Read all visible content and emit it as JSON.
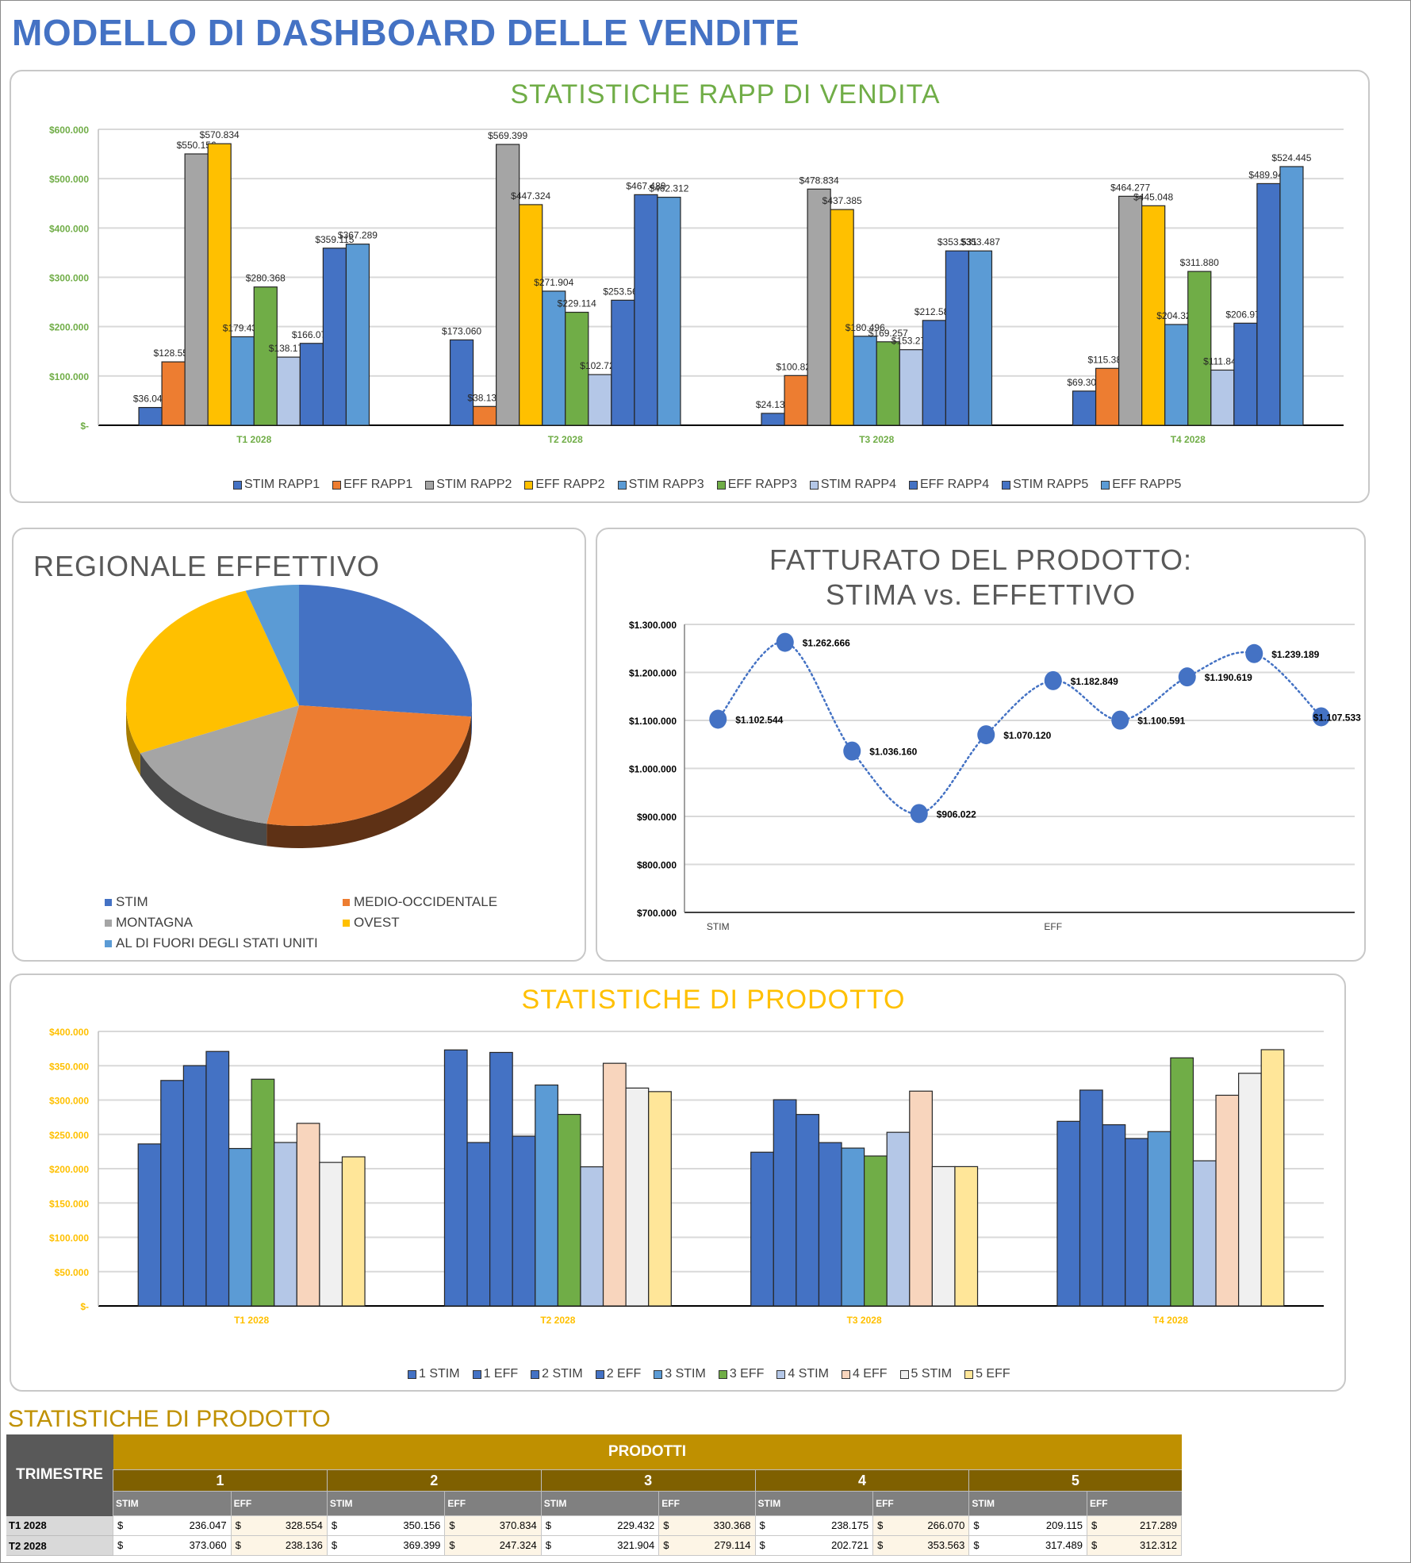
{
  "page": {
    "title": "MODELLO DI DASHBOARD DELLE VENDITE"
  },
  "colors": {
    "title_blue": "#4472c4",
    "green_title": "#70ad47",
    "gold_title": "#ffc000",
    "table_gold": "#bf9000",
    "table_dark_gold": "#7f6000"
  },
  "chart_data": [
    {
      "id": "rep-stats",
      "type": "bar",
      "title": "STATISTICHE RAPP DI VENDITA",
      "categories": [
        "T1 2028",
        "T2 2028",
        "T3 2028",
        "T4 2028"
      ],
      "ylim": [
        0,
        600000
      ],
      "yticks": [
        0,
        100000,
        200000,
        300000,
        400000,
        500000,
        600000
      ],
      "ytick_labels": [
        "$-",
        "$100.000",
        "$200.000",
        "$300.000",
        "$400.000",
        "$500.000",
        "$600.000"
      ],
      "grid": true,
      "legend": "bottom",
      "data_labels": true,
      "series": [
        {
          "name": "STIM RAPP1",
          "color": "#4472c4",
          "values": [
            36047,
            173060,
            24132,
            69305
          ],
          "labels": [
            "$36.047",
            "$173.060",
            "$24.132",
            "$69.305"
          ]
        },
        {
          "name": "EFF RAPP1",
          "color": "#ed7d31",
          "values": [
            128554,
            38136,
            100822,
            115387
          ],
          "labels": [
            "$128.554",
            "$38.136",
            "$100.822",
            "$115.387"
          ]
        },
        {
          "name": "STIM RAPP2",
          "color": "#a5a5a5",
          "values": [
            550156,
            569399,
            478834,
            464277
          ],
          "labels": [
            "$550.156",
            "$569.399",
            "$478.834",
            "$464.277"
          ]
        },
        {
          "name": "EFF RAPP2",
          "color": "#ffc000",
          "values": [
            570834,
            447324,
            437385,
            445048
          ],
          "labels": [
            "$570.834",
            "$447.324",
            "$437.385",
            "$445.048"
          ]
        },
        {
          "name": "STIM RAPP3",
          "color": "#5b9bd5",
          "values": [
            179432,
            271904,
            180496,
            204328
          ],
          "labels": [
            "$179.432",
            "$271.904",
            "$180.496",
            "$204.328"
          ]
        },
        {
          "name": "EFF RAPP3",
          "color": "#70ad47",
          "values": [
            280368,
            229114,
            169257,
            311880
          ],
          "labels": [
            "$280.368",
            "$229.114",
            "$169.257",
            "$311.880"
          ]
        },
        {
          "name": "STIM RAPP4",
          "color": "#b4c7e7",
          "values": [
            138175,
            102721,
            153279,
            111847
          ],
          "labels": [
            "$138.175",
            "$102.721",
            "$153.279",
            "$111.847"
          ]
        },
        {
          "name": "EFF RAPP4",
          "color": "#4472c4",
          "values": [
            166070,
            253563,
            212586,
            206970
          ],
          "labels": [
            "$166.070",
            "$253.563",
            "$212.586",
            "$206.970"
          ]
        },
        {
          "name": "STIM RAPP5",
          "color": "#4472c4",
          "values": [
            359115,
            467489,
            353531,
            489945
          ],
          "labels": [
            "$359.115",
            "$467.489",
            "$353.531",
            "$489.945"
          ]
        },
        {
          "name": "EFF RAPP5",
          "color": "#5b9bd5",
          "values": [
            367289,
            462312,
            353487,
            524445
          ],
          "labels": [
            "$367.289",
            "$462.312",
            "$353.487",
            "$524.445"
          ]
        }
      ]
    },
    {
      "id": "regional-pie",
      "type": "pie",
      "title": "REGIONALE EFFETTIVO",
      "legend": "bottom",
      "slices": [
        {
          "name": "STIM",
          "color": "#4472c4",
          "share": 0.265
        },
        {
          "name": "MEDIO-OCCIDENTALE",
          "color": "#ed7d31",
          "share": 0.265
        },
        {
          "name": "MONTAGNA",
          "color": "#a5a5a5",
          "share": 0.155
        },
        {
          "name": "OVEST",
          "color": "#ffc000",
          "share": 0.265
        },
        {
          "name": "AL DI FUORI DEGLI STATI UNITI",
          "color": "#5b9bd5",
          "share": 0.05
        }
      ],
      "legend_order": [
        "STIM",
        "MEDIO-OCCIDENTALE",
        "MONTAGNA",
        "OVEST",
        "AL DI FUORI DEGLI STATI UNITI"
      ]
    },
    {
      "id": "revenue-line",
      "type": "line",
      "title_line1": "FATTURATO DEL PRODOTTO:",
      "title_line2": "STIMA vs. EFFETTIVO",
      "ylim": [
        700000,
        1300000
      ],
      "yticks": [
        700000,
        800000,
        900000,
        1000000,
        1100000,
        1200000,
        1300000
      ],
      "ytick_labels": [
        "$700.000",
        "$800.000",
        "$900.000",
        "$1.000.000",
        "$1.100.000",
        "$1.200.000",
        "$1.300.000"
      ],
      "xtick_labels": [
        {
          "label": "STIM",
          "index": 0
        },
        {
          "label": "EFF",
          "index": 5
        }
      ],
      "grid": true,
      "series": [
        {
          "name": "Fatturato",
          "color": "#4472c4",
          "style": "dotted-smooth",
          "values": [
            1102544,
            1262666,
            1036160,
            906022,
            1070120,
            1182849,
            1100591,
            1190619,
            1239189,
            1107533
          ],
          "labels": [
            "$1.102.544",
            "$1.262.666",
            "$1.036.160",
            "$906.022",
            "$1.070.120",
            "$1.182.849",
            "$1.100.591",
            "$1.190.619",
            "$1.239.189",
            "$1.107.533"
          ]
        }
      ]
    },
    {
      "id": "product-stats",
      "type": "bar",
      "title": "STATISTICHE DI PRODOTTO",
      "categories": [
        "T1 2028",
        "T2 2028",
        "T3 2028",
        "T4 2028"
      ],
      "ylim": [
        0,
        400000
      ],
      "yticks": [
        0,
        50000,
        100000,
        150000,
        200000,
        250000,
        300000,
        350000,
        400000
      ],
      "ytick_labels": [
        "$-",
        "$50.000",
        "$100.000",
        "$150.000",
        "$200.000",
        "$250.000",
        "$300.000",
        "$350.000",
        "$400.000"
      ],
      "grid": true,
      "legend": "bottom",
      "series": [
        {
          "name": "1 STIM",
          "color": "#4472c4",
          "values": [
            236047,
            373060,
            224000,
            269000
          ]
        },
        {
          "name": "1 EFF",
          "color": "#4472c4",
          "values": [
            328554,
            238136,
            300500,
            314500
          ]
        },
        {
          "name": "2 STIM",
          "color": "#4472c4",
          "values": [
            350156,
            369399,
            279000,
            264000
          ]
        },
        {
          "name": "2 EFF",
          "color": "#4472c4",
          "values": [
            370834,
            247324,
            238000,
            244000
          ]
        },
        {
          "name": "3 STIM",
          "color": "#5b9bd5",
          "values": [
            229432,
            321904,
            230000,
            254000
          ]
        },
        {
          "name": "3 EFF",
          "color": "#70ad47",
          "values": [
            330368,
            279114,
            218500,
            361500
          ]
        },
        {
          "name": "4 STIM",
          "color": "#b4c7e7",
          "values": [
            238175,
            202721,
            253000,
            211500
          ]
        },
        {
          "name": "4 EFF",
          "color": "#f8d5bd",
          "values": [
            266070,
            353563,
            313000,
            307000
          ]
        },
        {
          "name": "5 STIM",
          "color": "#f0f0f0",
          "values": [
            209115,
            317489,
            203000,
            339000
          ]
        },
        {
          "name": "5 EFF",
          "color": "#ffe699",
          "values": [
            217289,
            312312,
            203000,
            373400
          ]
        }
      ]
    }
  ],
  "table": {
    "title": "STATISTICHE DI PRODOTTO",
    "header_trimestre": "TRIMESTRE",
    "header_prodotti": "PRODOTTI",
    "products": [
      "1",
      "2",
      "3",
      "4",
      "5"
    ],
    "sub_stim": "STIM",
    "sub_eff": "EFF",
    "currency": "$",
    "rows": [
      {
        "label": "T1 2028",
        "values": [
          "236.047",
          "328.554",
          "350.156",
          "370.834",
          "229.432",
          "330.368",
          "238.175",
          "266.070",
          "209.115",
          "217.289"
        ]
      },
      {
        "label": "T2 2028",
        "values": [
          "373.060",
          "238.136",
          "369.399",
          "247.324",
          "321.904",
          "279.114",
          "202.721",
          "353.563",
          "317.489",
          "312.312"
        ]
      }
    ]
  }
}
